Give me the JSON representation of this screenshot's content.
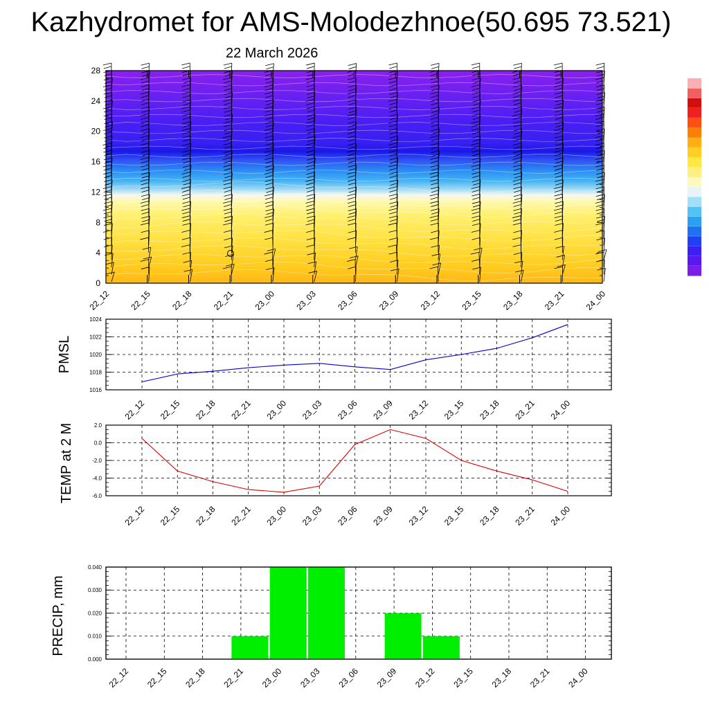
{
  "title": "Kazhydromet for AMS-Molodezhnoe(50.695 73.521)",
  "subtitle": "22 March 2026",
  "colors": {
    "pmsl_line": "#0000cc",
    "temp_line": "#dd0000",
    "precip_bar": "#00ee00",
    "grid": "#000000",
    "contour_top": "#8020ee",
    "contour_band": "#2020f0",
    "contour_low": "#ffd020"
  },
  "chart_data": [
    {
      "type": "heatmap",
      "name_hint": "cross-section",
      "x": [
        "22_12",
        "22_15",
        "22_18",
        "22_21",
        "23_00",
        "23_03",
        "23_06",
        "23_09",
        "23_12",
        "23_15",
        "23_18",
        "23_21",
        "24_00"
      ],
      "yticks": [
        "0",
        "4",
        "8",
        "12",
        "16",
        "20",
        "24",
        "28"
      ],
      "ylim": [
        0,
        28
      ],
      "colorbar_colors": [
        "#7a1ee8",
        "#5a18f0",
        "#3a20f4",
        "#2040f4",
        "#2070f4",
        "#2aa0f4",
        "#50c4f4",
        "#a0e0f8",
        "#e8f4f8",
        "#fff8c0",
        "#fff080",
        "#ffe840",
        "#ffd020",
        "#ffb010",
        "#ff8000",
        "#ff5010",
        "#f02020",
        "#d01010",
        "#f06060",
        "#f8b0b0"
      ]
    },
    {
      "type": "line",
      "ylabel": "PMSL",
      "x": [
        "22_12",
        "22_15",
        "22_18",
        "22_21",
        "23_00",
        "23_03",
        "23_06",
        "23_09",
        "23_12",
        "23_15",
        "23_18",
        "23_21",
        "24_00"
      ],
      "yticks": [
        "1016",
        "1018",
        "1020",
        "1022",
        "1024"
      ],
      "ylim": [
        1016,
        1024
      ],
      "series": [
        {
          "values": [
            1016.9,
            1017.8,
            1018.1,
            1018.5,
            1018.8,
            1019.0,
            1018.6,
            1018.3,
            1019.4,
            1020.0,
            1020.7,
            1021.9,
            1023.4
          ]
        }
      ]
    },
    {
      "type": "line",
      "ylabel": "TEMP at 2 M",
      "x": [
        "22_12",
        "22_15",
        "22_18",
        "22_21",
        "23_00",
        "23_03",
        "23_06",
        "23_09",
        "23_12",
        "23_15",
        "23_18",
        "23_21",
        "24_00"
      ],
      "yticks": [
        "-6.0",
        "-4.0",
        "-2.0",
        "0.0",
        "2.0"
      ],
      "ylim": [
        -6,
        2
      ],
      "series": [
        {
          "values": [
            0.5,
            -3.2,
            -4.4,
            -5.3,
            -5.6,
            -4.9,
            -0.2,
            1.5,
            0.5,
            -2.0,
            -3.2,
            -4.2,
            -5.5
          ]
        }
      ]
    },
    {
      "type": "bar",
      "ylabel": "PRECIP, mm",
      "x": [
        "22_12",
        "22_15",
        "22_18",
        "22_21",
        "23_00",
        "23_03",
        "23_06",
        "23_09",
        "23_12",
        "23_15",
        "23_18",
        "23_21",
        "24_00"
      ],
      "yticks": [
        "0.000",
        "0.010",
        "0.020",
        "0.030",
        "0.040"
      ],
      "ylim": [
        0,
        0.04
      ],
      "series": [
        {
          "values": [
            0,
            0,
            0,
            0.01,
            0.04,
            0.04,
            0,
            0.02,
            0.01,
            0,
            0,
            0,
            0
          ]
        }
      ]
    }
  ]
}
